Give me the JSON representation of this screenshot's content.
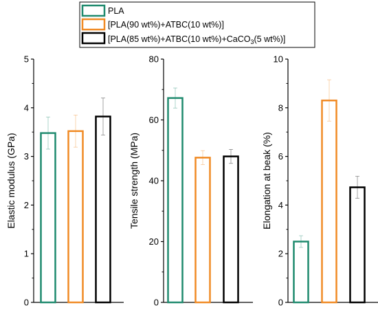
{
  "legend": {
    "entries": [
      {
        "label": "PLA",
        "color": "#1f8a6e"
      },
      {
        "label": "[PLA(90 wt%)+ATBC(10 wt%)]",
        "color": "#f08a24"
      },
      {
        "label": "[PLA(85 wt%)+ATBC(10 wt%)+CaCO",
        "sub": "3",
        "suffix": "(5 wt%)]",
        "color": "#000000"
      }
    ]
  },
  "chart_data": [
    {
      "type": "bar",
      "ylabel": "Elastic modulus (GPa)",
      "ylim": [
        0,
        5
      ],
      "yticks": [
        "0",
        "1",
        "2",
        "3",
        "4",
        "5"
      ],
      "series": [
        {
          "name": "PLA",
          "value": 3.48,
          "error": 0.33
        },
        {
          "name": "[PLA(90 wt%)+ATBC(10 wt%)]",
          "value": 3.52,
          "error": 0.33
        },
        {
          "name": "[PLA(85 wt%)+ATBC(10 wt%)+CaCO3(5 wt%)]",
          "value": 3.82,
          "error": 0.38
        }
      ]
    },
    {
      "type": "bar",
      "ylabel": "Tensile strength (MPa)",
      "ylim": [
        0,
        80
      ],
      "yticks": [
        "0",
        "20",
        "40",
        "60",
        "80"
      ],
      "series": [
        {
          "name": "PLA",
          "value": 67.2,
          "error": 3.3
        },
        {
          "name": "[PLA(90 wt%)+ATBC(10 wt%)]",
          "value": 47.6,
          "error": 2.3
        },
        {
          "name": "[PLA(85 wt%)+ATBC(10 wt%)+CaCO3(5 wt%)]",
          "value": 48.0,
          "error": 2.3
        }
      ]
    },
    {
      "type": "bar",
      "ylabel": "Elongation at beak (%)",
      "ylim": [
        0,
        10
      ],
      "yticks": [
        "0",
        "2",
        "4",
        "6",
        "8",
        "10"
      ],
      "series": [
        {
          "name": "PLA",
          "value": 2.5,
          "error": 0.24
        },
        {
          "name": "[PLA(90 wt%)+ATBC(10 wt%)]",
          "value": 8.3,
          "error": 0.85
        },
        {
          "name": "[PLA(85 wt%)+ATBC(10 wt%)+CaCO3(5 wt%)]",
          "value": 4.73,
          "error": 0.45
        }
      ]
    }
  ]
}
